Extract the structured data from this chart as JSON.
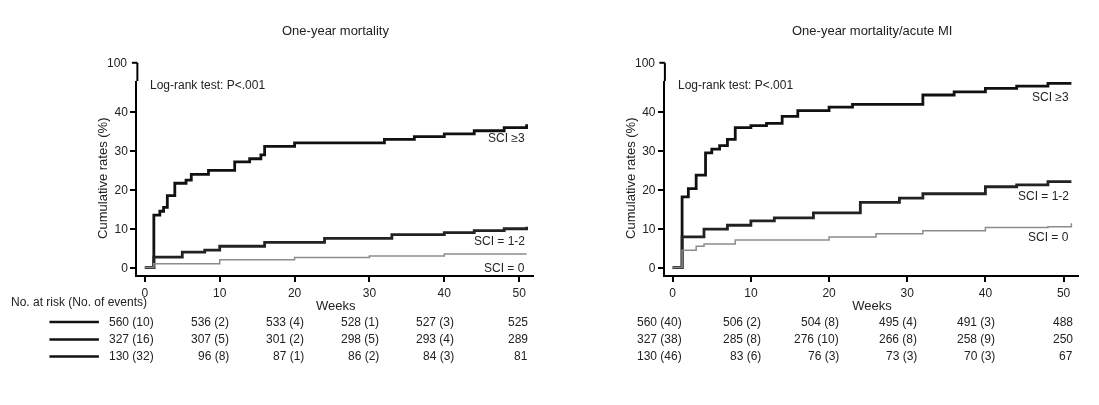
{
  "chart_data": [
    {
      "type": "step",
      "title": "One-year mortality",
      "xlabel": "Weeks",
      "ylabel": "Cumulative rates (%)",
      "xlim": [
        -1,
        52
      ],
      "ylim": [
        -2,
        48
      ],
      "xticks": [
        0,
        10,
        20,
        30,
        40,
        50
      ],
      "yticks": [
        0,
        10,
        20,
        30,
        40
      ],
      "series": [
        {
          "name": "SCI ≥3",
          "color": "#111111",
          "x": [
            0,
            1.2,
            2,
            2.5,
            3,
            4,
            5.5,
            6.2,
            8.5,
            12,
            14,
            15.5,
            16,
            20,
            32,
            36,
            40,
            44,
            48,
            51
          ],
          "values": [
            0,
            13.5,
            14.5,
            15.5,
            18.5,
            21.7,
            22.5,
            24,
            25,
            27.2,
            28,
            29,
            31.2,
            32.1,
            33,
            33.7,
            34.4,
            35.2,
            36,
            36.9
          ]
        },
        {
          "name": "SCI = 1-2",
          "color": "#222222",
          "x": [
            0,
            1.2,
            5,
            8,
            10,
            16,
            24,
            33,
            40,
            44,
            48,
            51
          ],
          "values": [
            0,
            2.7,
            4,
            4.5,
            5.5,
            6.5,
            7.5,
            8.5,
            9,
            9.5,
            10,
            10.5
          ]
        },
        {
          "name": "SCI = 0",
          "color": "#8c8c8c",
          "x": [
            0,
            1.2,
            10,
            20,
            30,
            40,
            51
          ],
          "values": [
            0,
            1,
            2,
            2.6,
            3,
            3.5,
            3.5
          ]
        }
      ],
      "annotations": [
        "Log-rank test: P<.001",
        "100",
        "No. at risk (No. of events)",
        "560 (10)",
        "536 (2)",
        "533 (4)",
        "528 (1)",
        "527 (3)",
        "525",
        "327 (16)",
        "307 (5)",
        "301 (2)",
        "298 (5)",
        "293 (4)",
        "289",
        "130 (32)",
        "96 (8)",
        "87 (1)",
        "86 (2)",
        "84 (3)",
        "81"
      ]
    },
    {
      "type": "step",
      "title": "One-year mortality/acute MI",
      "xlabel": "Weeks",
      "ylabel": "Cumulative rates (%)",
      "xlim": [
        -1,
        52
      ],
      "ylim": [
        -2,
        48
      ],
      "xticks": [
        0,
        10,
        20,
        30,
        40,
        50
      ],
      "yticks": [
        0,
        10,
        20,
        30,
        40
      ],
      "series": [
        {
          "name": "SCI ≥3",
          "color": "#111111",
          "x": [
            0,
            1.2,
            2,
            3,
            4.2,
            5,
            6,
            7,
            8,
            10,
            12,
            14,
            16,
            20,
            23,
            32,
            36,
            40,
            44,
            48,
            51
          ],
          "values": [
            0,
            18.2,
            20.3,
            23.8,
            29.5,
            30.5,
            31.4,
            33,
            36,
            36.5,
            37.1,
            38.9,
            40.4,
            41.3,
            42,
            44.4,
            45.2,
            46.1,
            46.7,
            47.4,
            47.4
          ]
        },
        {
          "name": "SCI = 1-2",
          "color": "#222222",
          "x": [
            0,
            1.2,
            4,
            7,
            10,
            13,
            18,
            24,
            29,
            32,
            40,
            44,
            48,
            51
          ],
          "values": [
            0,
            7.9,
            9.9,
            10.9,
            12,
            12.8,
            14.1,
            16.8,
            17.9,
            19,
            20.8,
            21.3,
            22.1,
            22.1
          ]
        },
        {
          "name": "SCI = 0",
          "color": "#8c8c8c",
          "x": [
            0,
            1.2,
            3,
            4,
            8,
            20,
            26,
            32,
            40,
            48,
            51
          ],
          "values": [
            0,
            4.5,
            5.5,
            6.1,
            7.1,
            7.9,
            8.7,
            9.5,
            10.3,
            10.5,
            11.4
          ]
        }
      ],
      "annotations": [
        "Log-rank test: P<.001",
        "100",
        "560 (40)",
        "506 (2)",
        "504 (8)",
        "495 (4)",
        "491 (3)",
        "488",
        "327 (38)",
        "285 (8)",
        "276 (10)",
        "266 (8)",
        "258 (9)",
        "250",
        "130 (46)",
        "83 (6)",
        "76 (3)",
        "73 (3)",
        "70 (3)",
        "67"
      ]
    }
  ]
}
